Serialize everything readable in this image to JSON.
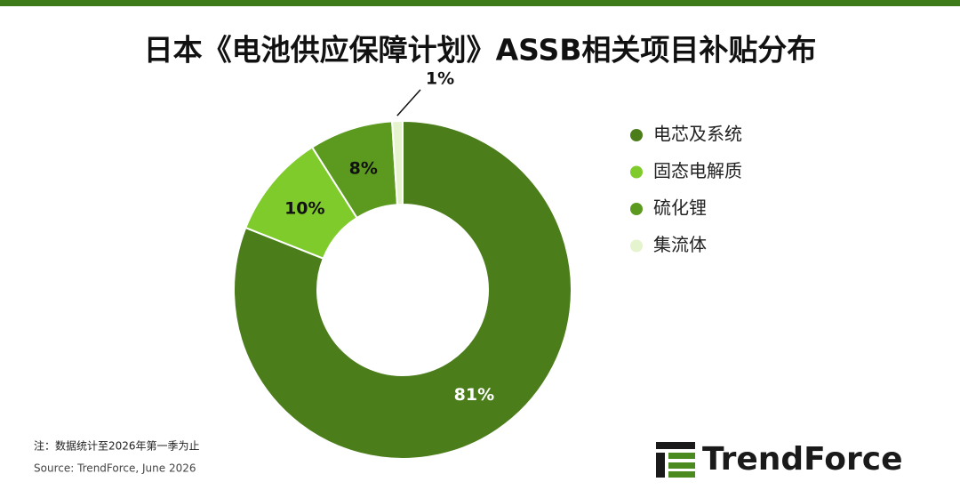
{
  "chart_data": {
    "type": "donut",
    "title": "日本《电池供应保障计划》ASSB相关项目补贴分布",
    "categories": [
      "电芯及系统",
      "固态电解质",
      "硫化锂",
      "集流体"
    ],
    "values": [
      81,
      10,
      8,
      1
    ],
    "value_labels": [
      "81%",
      "10%",
      "8%",
      "1%"
    ],
    "colors": [
      "#4b7d1b",
      "#7fcb2b",
      "#5b9a1f",
      "#e6f3cf"
    ],
    "legend": "right",
    "note": "注：数据统计至2026年第一季为止",
    "source": "Source: TrendForce, June  2026",
    "logo": "TrendForce"
  }
}
